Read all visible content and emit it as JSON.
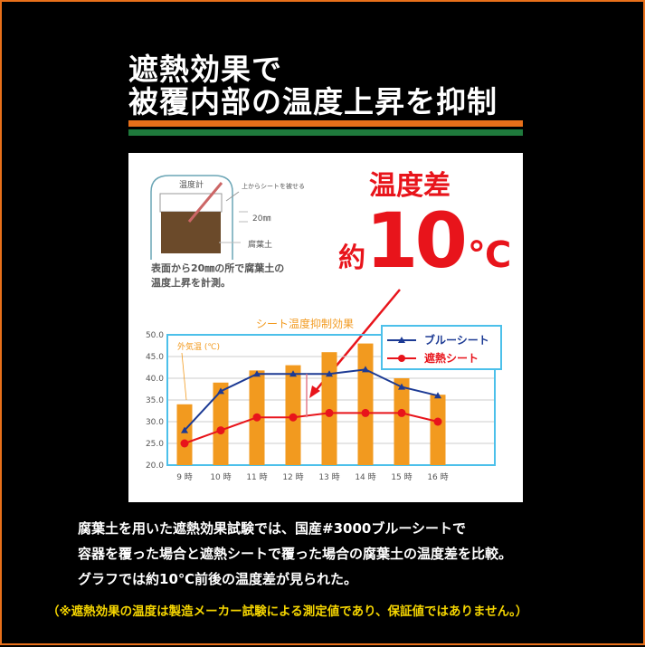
{
  "headline": [
    "遮熱効果で",
    "被覆内部の温度上昇を抑制"
  ],
  "stripe_colors": {
    "orange": "#e8701a",
    "green": "#1f7a3c"
  },
  "diagram": {
    "thermometer": "温度計",
    "sheet": "上からシートを被せる",
    "depth": "20㎜",
    "soil": "腐葉土",
    "caption": [
      "表面から20㎜の所で腐葉土の",
      "温度上昇を計測。"
    ]
  },
  "callout": {
    "label": "温度差",
    "prefix": "約",
    "value": "10",
    "unit": "℃"
  },
  "chart_data": {
    "type": "bar+line",
    "title": "シート温度抑制効果",
    "categories": [
      "9 時",
      "10 時",
      "11 時",
      "12 時",
      "13 時",
      "14 時",
      "15 時",
      "16 時"
    ],
    "ylim": [
      20,
      50
    ],
    "yticks": [
      "20.0",
      "25.0",
      "30.0",
      "35.0",
      "40.0",
      "45.0",
      "50.0"
    ],
    "grid": true,
    "legend_position": "top-right",
    "series": [
      {
        "name": "外気温 (℃)",
        "type": "bar",
        "color": "#f29a1f",
        "values": [
          34,
          39,
          41.8,
          43,
          46,
          48,
          40,
          36.2
        ]
      },
      {
        "name": "ブルーシート",
        "type": "line",
        "marker": "triangle",
        "color": "#1c3a94",
        "values": [
          28,
          37,
          41,
          41,
          41,
          42,
          38,
          36
        ]
      },
      {
        "name": "遮熱シート",
        "type": "line",
        "marker": "circle",
        "color": "#e8141b",
        "values": [
          25,
          28,
          31,
          31,
          32,
          32,
          32,
          30
        ]
      }
    ]
  },
  "body": [
    "腐葉土を用いた遮熱効果試験では、国産#3000ブルーシートで",
    "容器を覆った場合と遮熱シートで覆った場合の腐葉土の温度差を比較。",
    "グラフでは約10℃前後の温度差が見られた。"
  ],
  "note": "（※遮熱効果の温度は製造メーカー試験による測定値であり、保証値ではありません。）"
}
